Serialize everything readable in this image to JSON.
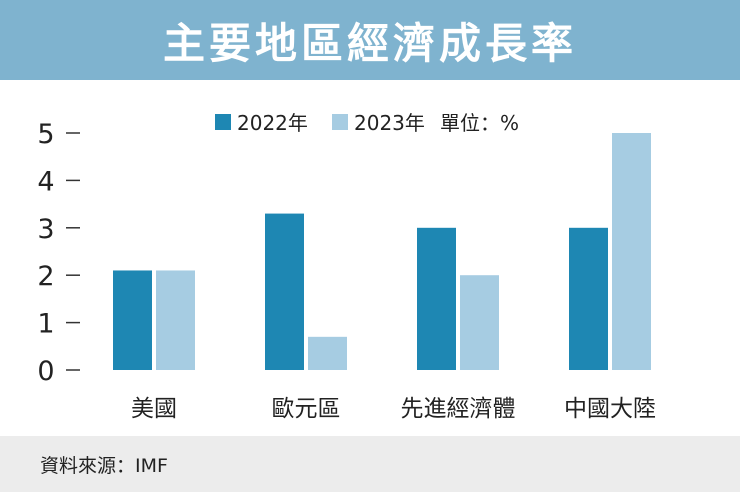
{
  "header": {
    "title": "主要地區經濟成長率"
  },
  "footer": {
    "source": "資料來源：IMF"
  },
  "colors": {
    "series2022": "#1e87b3",
    "series2023": "#a6cce2",
    "header_bg": "#7fb3cf",
    "footer_bg": "#ececec"
  },
  "chart_data": {
    "type": "bar",
    "title": "主要地區經濟成長率",
    "unit_label": "單位：%",
    "xlabel": "",
    "ylabel": "",
    "ylim": [
      0,
      5
    ],
    "yticks": [
      0,
      1,
      2,
      3,
      4,
      5
    ],
    "categories": [
      "美國",
      "歐元區",
      "先進經濟體",
      "中國大陸"
    ],
    "series": [
      {
        "name": "2022年",
        "values": [
          2.1,
          3.3,
          3.0,
          3.0
        ]
      },
      {
        "name": "2023年",
        "values": [
          2.1,
          0.7,
          2.0,
          5.0
        ]
      }
    ],
    "legend_position": "top-center",
    "grid": false
  }
}
